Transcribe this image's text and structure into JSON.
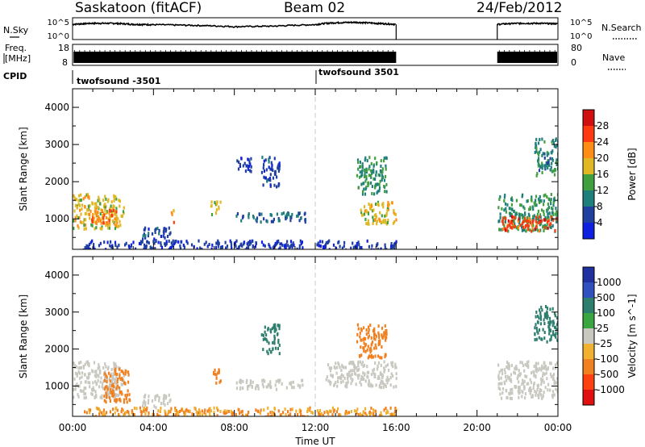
{
  "header": {
    "title": "Saskatoon (fitACF)",
    "beam": "Beam 02",
    "date": "24/Feb/2012"
  },
  "panels": {
    "nsky": {
      "left_label": "N.Sky",
      "left_ticks": [
        "10^5",
        "10^0"
      ],
      "right_ticks": [
        "10^5",
        "10^0"
      ],
      "right_label": "N.Search"
    },
    "freq": {
      "left_label_line1": "Freq.",
      "left_label_line2": "[MHz]",
      "left_ticks": [
        "18",
        "8"
      ],
      "right_ticks": [
        "80",
        "0"
      ],
      "right_label": "Nave"
    },
    "cpid": {
      "label": "CPID",
      "entries": [
        {
          "name": "twofsound",
          "id": "-3501"
        },
        {
          "name": "twofsound",
          "id": "3501"
        }
      ]
    },
    "power": {
      "ylabel": "Slant Range [km]",
      "cbar_label": "Power [dB]",
      "cbar_ticks": [
        "28",
        "24",
        "20",
        "16",
        "12",
        "8",
        "4"
      ],
      "cbar_colors": [
        "#d01010",
        "#ff3a10",
        "#ff8c14",
        "#e0b824",
        "#40a040",
        "#1f7f7a",
        "#2040a0",
        "#1020e0"
      ]
    },
    "velocity": {
      "ylabel": "Slant Range [km]",
      "cbar_label": "Velocity [m s^-1]",
      "cbar_ticks": [
        "1000",
        "500",
        "100",
        "25",
        "-25",
        "-100",
        "-500",
        "-1000"
      ],
      "cbar_colors": [
        "#2030a0",
        "#3050c0",
        "#2e7e6e",
        "#3aa640",
        "#c8c8c0",
        "#f0b030",
        "#f08020",
        "#ff4010",
        "#e01010"
      ],
      "ground_scatter_color": "#c8c8c0"
    }
  },
  "xaxis": {
    "label": "Time UT",
    "ticks": [
      "00:00",
      "04:00",
      "08:00",
      "12:00",
      "16:00",
      "20:00",
      "00:00"
    ]
  },
  "chart_data": [
    {
      "type": "line",
      "name": "N.Sky / N.Search",
      "yscale": "log",
      "ylim": [
        1,
        100000
      ],
      "x_range_hours": [
        0,
        24
      ],
      "data_gap_hours": [
        16.0,
        21.0
      ],
      "series": [
        {
          "x": [
            0,
            1,
            2,
            3,
            4,
            6,
            8,
            10,
            12,
            13,
            14,
            15,
            16
          ],
          "y": [
            10000,
            20000,
            20000,
            10000,
            8000,
            5000,
            2000,
            3000,
            8000,
            30000,
            40000,
            20000,
            10000
          ]
        },
        {
          "x": [
            21,
            22,
            23,
            24
          ],
          "y": [
            10000,
            20000,
            20000,
            15000
          ]
        }
      ]
    },
    {
      "type": "bar",
      "name": "Frequency / Nave",
      "ylim": [
        8,
        18
      ],
      "x_range_hours": [
        0,
        24
      ],
      "data_gap_hours": [
        16.0,
        21.0
      ]
    },
    {
      "type": "table",
      "name": "CPID",
      "rows": [
        {
          "start": "00:00",
          "end": "12:00",
          "program": "twofsound",
          "cpid": -3501
        },
        {
          "start": "12:00",
          "end": "24:00",
          "program": "twofsound",
          "cpid": 3501
        }
      ]
    },
    {
      "type": "heatmap",
      "name": "Power",
      "xlabel": "Time UT",
      "ylabel": "Slant Range [km]",
      "xlim": [
        0,
        24
      ],
      "ylim": [
        180,
        4500
      ],
      "yticks": [
        1000,
        2000,
        3000,
        4000
      ],
      "colorbar": [
        4,
        8,
        12,
        16,
        20,
        24,
        28
      ],
      "scatter_regions": [
        {
          "t0": 0.0,
          "t1": 2.5,
          "r0": 750,
          "r1": 1700,
          "val": 18
        },
        {
          "t0": 0.8,
          "t1": 2.2,
          "r0": 900,
          "r1": 1300,
          "val": 24
        },
        {
          "t0": 3.4,
          "t1": 4.8,
          "r0": 450,
          "r1": 800,
          "val": 6
        },
        {
          "t0": 4.8,
          "t1": 5.0,
          "r0": 900,
          "r1": 1300,
          "val": 22
        },
        {
          "t0": 6.8,
          "t1": 7.3,
          "r0": 1100,
          "r1": 1500,
          "val": 16
        },
        {
          "t0": 8.0,
          "t1": 11.5,
          "r0": 950,
          "r1": 1200,
          "val": 8
        },
        {
          "t0": 8.0,
          "t1": 8.8,
          "r0": 2300,
          "r1": 2700,
          "val": 5
        },
        {
          "t0": 9.3,
          "t1": 10.2,
          "r0": 1900,
          "r1": 2700,
          "val": 6
        },
        {
          "t0": 14.0,
          "t1": 15.5,
          "r0": 1700,
          "r1": 2700,
          "val": 12
        },
        {
          "t0": 14.2,
          "t1": 16.0,
          "r0": 900,
          "r1": 1500,
          "val": 18
        },
        {
          "t0": 0.5,
          "t1": 16.0,
          "r0": 200,
          "r1": 450,
          "val": 5
        },
        {
          "t0": 21.0,
          "t1": 24.0,
          "r0": 700,
          "r1": 1700,
          "val": 12
        },
        {
          "t0": 21.2,
          "t1": 24.0,
          "r0": 700,
          "r1": 1100,
          "val": 26
        },
        {
          "t0": 22.8,
          "t1": 24.0,
          "r0": 2200,
          "r1": 3200,
          "val": 10
        }
      ]
    },
    {
      "type": "heatmap",
      "name": "Velocity",
      "xlabel": "Time UT",
      "ylabel": "Slant Range [km]",
      "xlim": [
        0,
        24
      ],
      "ylim": [
        180,
        4500
      ],
      "yticks": [
        1000,
        2000,
        3000,
        4000
      ],
      "colorbar": [
        -1000,
        -500,
        -100,
        -25,
        25,
        100,
        500,
        1000
      ],
      "scatter_regions": [
        {
          "t0": 0.0,
          "t1": 2.5,
          "r0": 700,
          "r1": 1700,
          "val": 0
        },
        {
          "t0": 1.5,
          "t1": 2.8,
          "r0": 600,
          "r1": 1500,
          "val": -150
        },
        {
          "t0": 3.4,
          "t1": 4.8,
          "r0": 450,
          "r1": 800,
          "val": 0
        },
        {
          "t0": 6.8,
          "t1": 7.3,
          "r0": 1100,
          "r1": 1500,
          "val": -300
        },
        {
          "t0": 8.0,
          "t1": 11.5,
          "r0": 950,
          "r1": 1200,
          "val": 0
        },
        {
          "t0": 9.3,
          "t1": 10.2,
          "r0": 1900,
          "r1": 2700,
          "val": 150
        },
        {
          "t0": 12.5,
          "t1": 16.0,
          "r0": 1000,
          "r1": 1700,
          "val": 0
        },
        {
          "t0": 14.0,
          "t1": 15.5,
          "r0": 1800,
          "r1": 2700,
          "val": -300
        },
        {
          "t0": 0.5,
          "t1": 16.0,
          "r0": 200,
          "r1": 450,
          "val": -100
        },
        {
          "t0": 21.0,
          "t1": 24.0,
          "r0": 700,
          "r1": 1700,
          "val": 0
        },
        {
          "t0": 22.8,
          "t1": 24.0,
          "r0": 2200,
          "r1": 3200,
          "val": 150
        }
      ]
    }
  ]
}
